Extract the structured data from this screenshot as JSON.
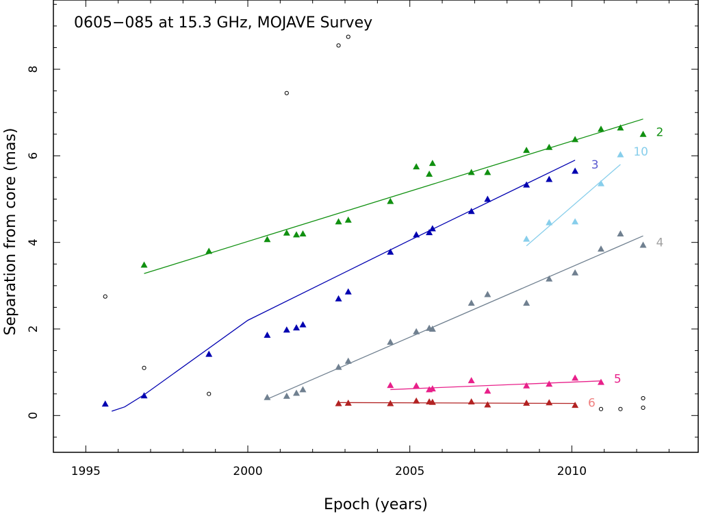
{
  "chart_data": {
    "type": "scatter",
    "title": "0605−085 at 15.3 GHz, MOJAVE Survey",
    "xlabel": "Epoch (years)",
    "ylabel": "Separation from core (mas)",
    "xlim": [
      1994.0,
      2013.9
    ],
    "ylim": [
      -0.85,
      9.6
    ],
    "xticks": [
      1995,
      2000,
      2005,
      2010
    ],
    "yticks": [
      0,
      2,
      4,
      6,
      8
    ],
    "xtick_labels": [
      "1995",
      "2000",
      "2005",
      "2010"
    ],
    "ytick_labels": [
      "0",
      "2",
      "4",
      "6",
      "8"
    ],
    "grid": false,
    "series": [
      {
        "name": "2",
        "label": "2",
        "color": "#109010",
        "label_color": "#109010",
        "marker": "triangle",
        "points": [
          [
            1996.8,
            3.48
          ],
          [
            1998.8,
            3.8
          ],
          [
            2000.6,
            4.07
          ],
          [
            2001.2,
            4.22
          ],
          [
            2001.5,
            4.18
          ],
          [
            2001.7,
            4.2
          ],
          [
            2002.8,
            4.48
          ],
          [
            2003.1,
            4.52
          ],
          [
            2004.4,
            4.95
          ],
          [
            2005.2,
            5.75
          ],
          [
            2005.6,
            5.58
          ],
          [
            2005.7,
            5.83
          ],
          [
            2006.9,
            5.62
          ],
          [
            2007.4,
            5.62
          ],
          [
            2008.6,
            6.13
          ],
          [
            2009.3,
            6.2
          ],
          [
            2010.1,
            6.38
          ],
          [
            2010.9,
            6.62
          ],
          [
            2011.5,
            6.65
          ],
          [
            2012.2,
            6.5
          ]
        ],
        "fit": [
          [
            1996.8,
            3.28
          ],
          [
            2012.2,
            6.85
          ]
        ],
        "label_pos": [
          2012.6,
          6.55
        ]
      },
      {
        "name": "3",
        "label": "3",
        "color": "#0000b0",
        "label_color": "#5a5ad0",
        "marker": "triangle",
        "points": [
          [
            1995.6,
            0.27
          ],
          [
            1996.8,
            0.46
          ],
          [
            1998.8,
            1.42
          ],
          [
            2000.6,
            1.86
          ],
          [
            2001.2,
            1.98
          ],
          [
            2001.5,
            2.03
          ],
          [
            2001.7,
            2.1
          ],
          [
            2002.8,
            2.7
          ],
          [
            2003.1,
            2.86
          ],
          [
            2004.4,
            3.78
          ],
          [
            2005.2,
            4.18
          ],
          [
            2005.6,
            4.23
          ],
          [
            2005.7,
            4.32
          ],
          [
            2006.9,
            4.72
          ],
          [
            2007.4,
            5.0
          ],
          [
            2008.6,
            5.33
          ],
          [
            2009.3,
            5.46
          ],
          [
            2010.1,
            5.65
          ]
        ],
        "fit": [
          [
            1995.8,
            0.1
          ],
          [
            1996.2,
            0.2
          ],
          [
            1996.8,
            0.48
          ],
          [
            2000.0,
            2.2
          ],
          [
            2005.0,
            4.05
          ],
          [
            2010.1,
            5.9
          ]
        ],
        "label_pos": [
          2010.6,
          5.8
        ]
      },
      {
        "name": "10",
        "label": "10",
        "color": "#87ceeb",
        "label_color": "#87ceeb",
        "marker": "triangle",
        "points": [
          [
            2008.6,
            4.08
          ],
          [
            2009.3,
            4.46
          ],
          [
            2010.1,
            4.48
          ],
          [
            2010.9,
            5.36
          ],
          [
            2011.5,
            6.03
          ]
        ],
        "fit": [
          [
            2008.6,
            3.92
          ],
          [
            2011.5,
            5.8
          ]
        ],
        "label_pos": [
          2011.9,
          6.1
        ]
      },
      {
        "name": "4",
        "label": "4",
        "color": "#708090",
        "label_color": "#a0a0a0",
        "marker": "triangle",
        "points": [
          [
            2000.6,
            0.42
          ],
          [
            2001.2,
            0.45
          ],
          [
            2001.5,
            0.52
          ],
          [
            2001.7,
            0.6
          ],
          [
            2002.8,
            1.12
          ],
          [
            2003.1,
            1.26
          ],
          [
            2004.4,
            1.7
          ],
          [
            2005.2,
            1.94
          ],
          [
            2005.6,
            2.02
          ],
          [
            2005.7,
            2.0
          ],
          [
            2006.9,
            2.6
          ],
          [
            2007.4,
            2.8
          ],
          [
            2008.6,
            2.6
          ],
          [
            2009.3,
            3.16
          ],
          [
            2010.1,
            3.3
          ],
          [
            2010.9,
            3.85
          ],
          [
            2011.5,
            4.2
          ],
          [
            2012.2,
            3.94
          ]
        ],
        "fit": [
          [
            2000.6,
            0.38
          ],
          [
            2012.2,
            4.15
          ]
        ],
        "label_pos": [
          2012.6,
          4.0
        ]
      },
      {
        "name": "5",
        "label": "5",
        "color": "#e8208a",
        "label_color": "#e8208a",
        "marker": "triangle",
        "points": [
          [
            2004.4,
            0.7
          ],
          [
            2005.2,
            0.69
          ],
          [
            2005.6,
            0.6
          ],
          [
            2005.7,
            0.62
          ],
          [
            2006.9,
            0.81
          ],
          [
            2007.4,
            0.57
          ],
          [
            2008.6,
            0.69
          ],
          [
            2009.3,
            0.73
          ],
          [
            2010.1,
            0.87
          ],
          [
            2010.9,
            0.77
          ]
        ],
        "fit": [
          [
            2004.4,
            0.6
          ],
          [
            2010.9,
            0.8
          ]
        ],
        "label_pos": [
          2011.3,
          0.85
        ]
      },
      {
        "name": "6",
        "label": "6",
        "color": "#b22222",
        "label_color": "#f08080",
        "marker": "triangle",
        "points": [
          [
            2002.8,
            0.28
          ],
          [
            2003.1,
            0.29
          ],
          [
            2004.4,
            0.28
          ],
          [
            2005.2,
            0.34
          ],
          [
            2005.6,
            0.32
          ],
          [
            2005.7,
            0.31
          ],
          [
            2006.9,
            0.32
          ],
          [
            2007.4,
            0.25
          ],
          [
            2008.6,
            0.29
          ],
          [
            2009.3,
            0.3
          ],
          [
            2010.1,
            0.24
          ]
        ],
        "fit": [
          [
            2002.8,
            0.3
          ],
          [
            2010.1,
            0.28
          ]
        ],
        "label_pos": [
          2010.5,
          0.3
        ]
      }
    ],
    "unassigned": {
      "name": "unassociated components",
      "color": "#000000",
      "marker": "open-circle",
      "points": [
        [
          1995.6,
          2.75
        ],
        [
          1996.8,
          1.1
        ],
        [
          1998.8,
          0.5
        ],
        [
          2001.2,
          7.45
        ],
        [
          2002.8,
          8.55
        ],
        [
          2003.1,
          8.75
        ],
        [
          2010.9,
          0.15
        ],
        [
          2011.5,
          0.15
        ],
        [
          2012.2,
          0.18
        ],
        [
          2012.2,
          0.4
        ]
      ]
    }
  }
}
